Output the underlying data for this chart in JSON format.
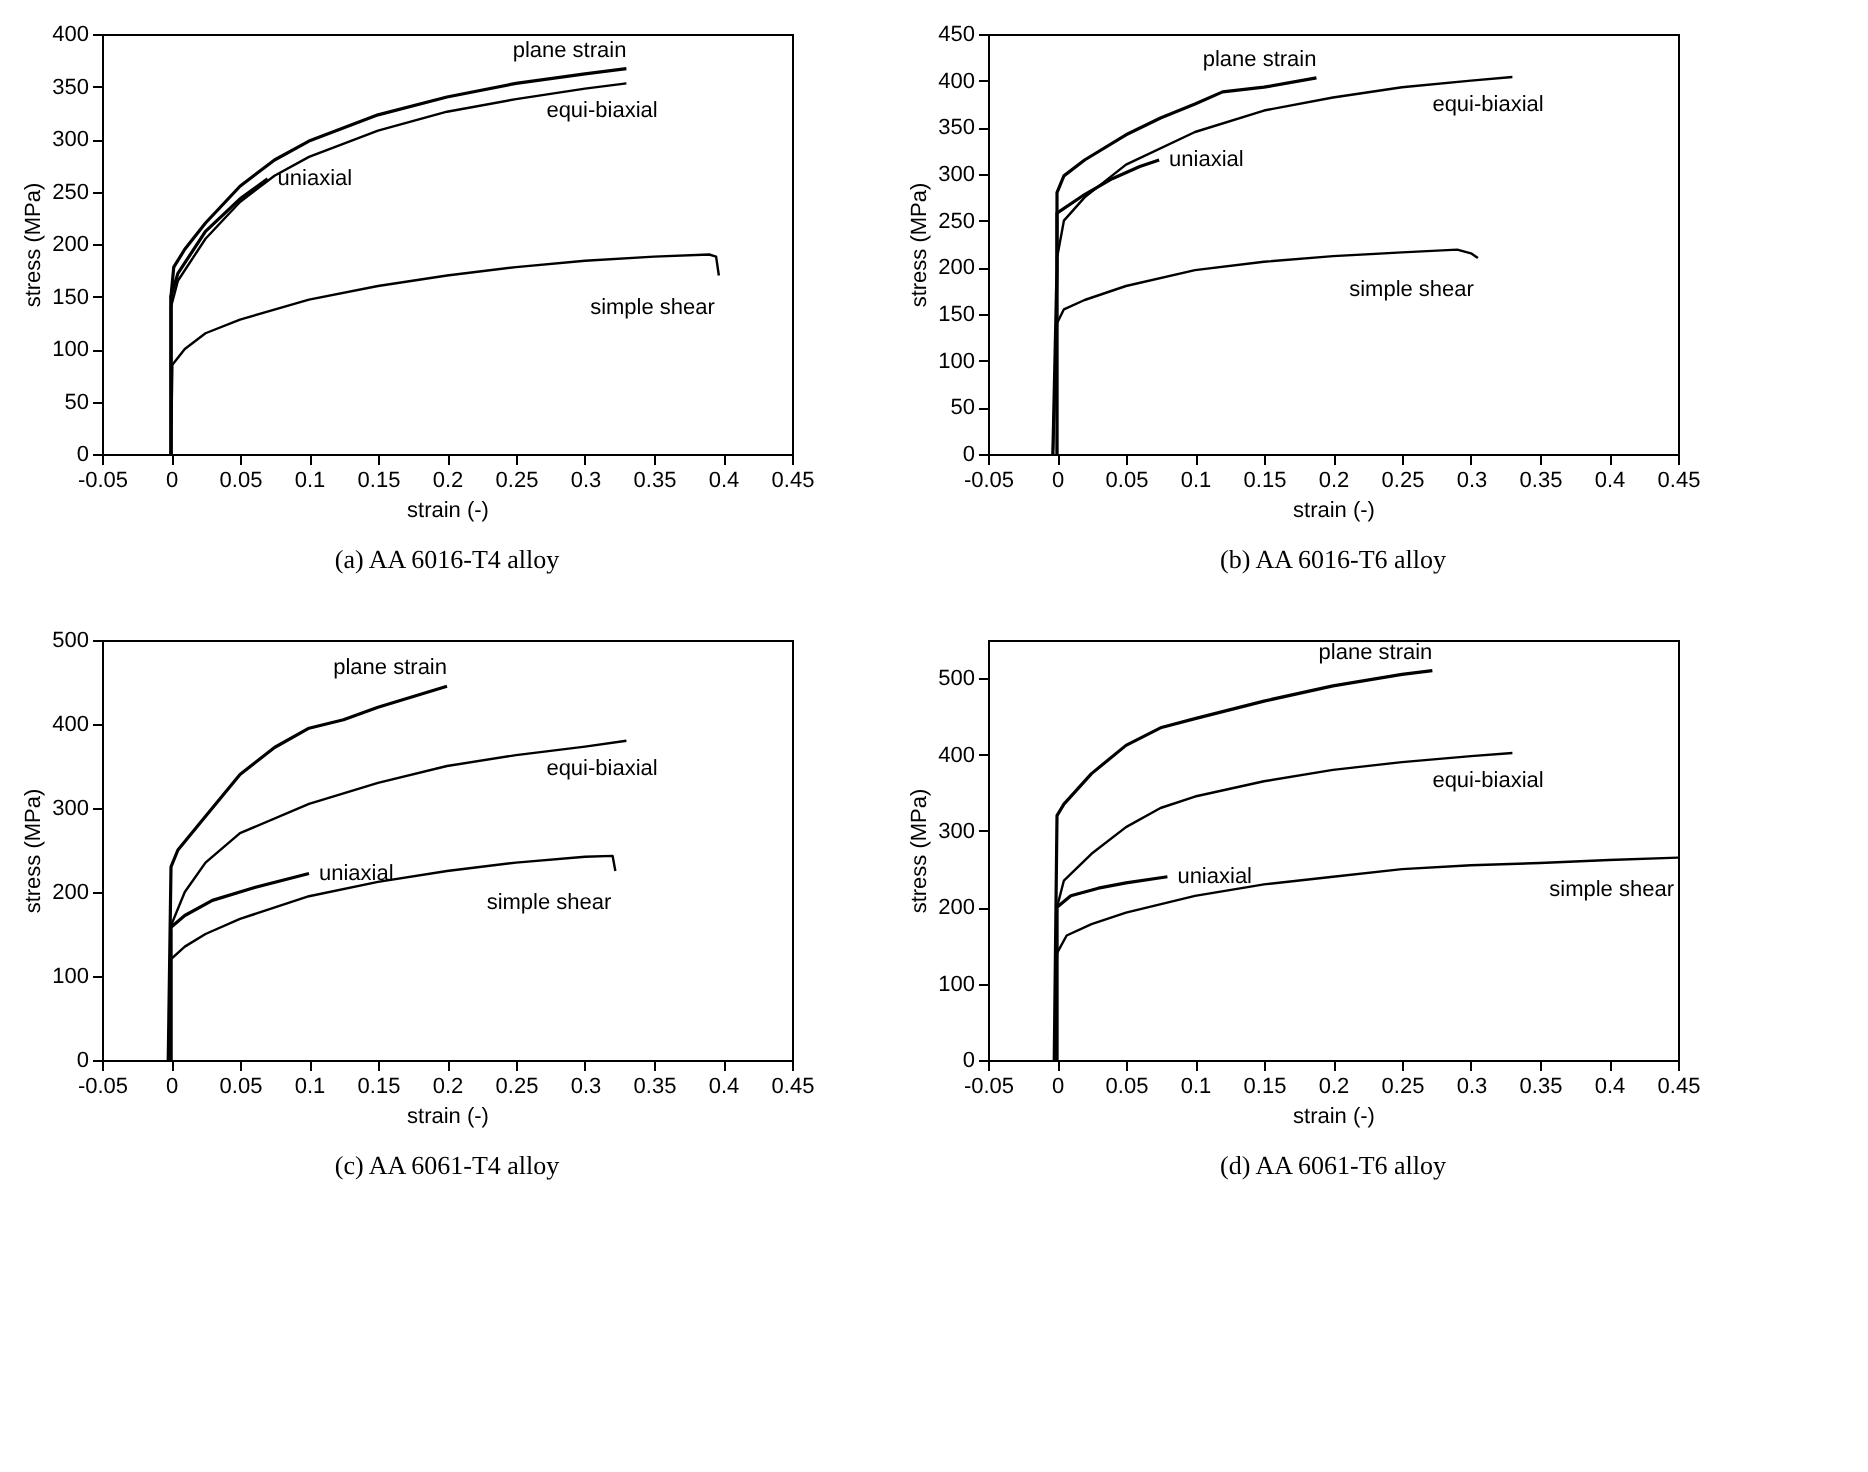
{
  "chart_data": [
    {
      "type": "line",
      "title": "(a)  AA 6016-T4 alloy",
      "xlabel": "strain (-)",
      "ylabel": "stress (MPa)",
      "xlim": [
        -0.05,
        0.45
      ],
      "xticks": [
        -0.05,
        0,
        0.05,
        0.1,
        0.15,
        0.2,
        0.25,
        0.3,
        0.35,
        0.4,
        0.45
      ],
      "ylim": [
        0,
        400
      ],
      "yticks": [
        0,
        50,
        100,
        150,
        200,
        250,
        300,
        350,
        400
      ],
      "marker": "none",
      "line_style": "solid",
      "legend": false,
      "grid": false,
      "series": [
        {
          "name": "plane strain",
          "color": "#000000",
          "x": [
            0,
            0,
            0.002,
            0.01,
            0.025,
            0.05,
            0.075,
            0.1,
            0.15,
            0.2,
            0.25,
            0.3,
            0.33
          ],
          "values": [
            0,
            150,
            178,
            195,
            220,
            255,
            280,
            298,
            323,
            340,
            353,
            362,
            367
          ]
        },
        {
          "name": "equi-biaxial",
          "color": "#000000",
          "x": [
            0,
            0,
            0.005,
            0.025,
            0.05,
            0.075,
            0.1,
            0.15,
            0.2,
            0.25,
            0.3,
            0.33
          ],
          "values": [
            0,
            140,
            165,
            205,
            240,
            265,
            283,
            308,
            326,
            338,
            348,
            353
          ]
        },
        {
          "name": "uniaxial",
          "color": "#000000",
          "x": [
            0,
            0,
            0.005,
            0.025,
            0.05,
            0.07
          ],
          "values": [
            0,
            150,
            172,
            212,
            243,
            262
          ]
        },
        {
          "name": "simple shear",
          "color": "#000000",
          "x": [
            0,
            0.001,
            0.01,
            0.025,
            0.05,
            0.1,
            0.15,
            0.2,
            0.25,
            0.3,
            0.35,
            0.39,
            0.395,
            0.397
          ],
          "values": [
            0,
            85,
            100,
            115,
            128,
            147,
            160,
            170,
            178,
            184,
            188,
            190,
            188,
            170
          ]
        }
      ]
    },
    {
      "type": "line",
      "title": "(b)  AA 6016-T6 alloy",
      "xlabel": "strain (-)",
      "ylabel": "stress (MPa)",
      "xlim": [
        -0.05,
        0.45
      ],
      "xticks": [
        -0.05,
        0,
        0.05,
        0.1,
        0.15,
        0.2,
        0.25,
        0.3,
        0.35,
        0.4,
        0.45
      ],
      "ylim": [
        0,
        450
      ],
      "yticks": [
        0,
        50,
        100,
        150,
        200,
        250,
        300,
        350,
        400,
        450
      ],
      "marker": "none",
      "line_style": "solid",
      "legend": false,
      "grid": false,
      "series": [
        {
          "name": "plane strain",
          "color": "#000000",
          "x": [
            -0.003,
            0,
            0,
            0.005,
            0.02,
            0.05,
            0.075,
            0.1,
            0.12,
            0.15,
            0.188
          ],
          "values": [
            0,
            200,
            280,
            298,
            315,
            342,
            360,
            375,
            388,
            393,
            403
          ]
        },
        {
          "name": "equi-biaxial",
          "color": "#000000",
          "x": [
            0,
            0,
            0.005,
            0.02,
            0.05,
            0.1,
            0.15,
            0.2,
            0.25,
            0.3,
            0.33
          ],
          "values": [
            0,
            210,
            250,
            275,
            310,
            345,
            368,
            382,
            393,
            400,
            404
          ]
        },
        {
          "name": "uniaxial",
          "color": "#000000",
          "x": [
            0,
            0,
            0.02,
            0.04,
            0.06,
            0.074
          ],
          "values": [
            0,
            258,
            278,
            295,
            308,
            315
          ]
        },
        {
          "name": "simple shear",
          "color": "#000000",
          "x": [
            -0.003,
            0,
            0.005,
            0.02,
            0.05,
            0.1,
            0.15,
            0.2,
            0.25,
            0.29,
            0.3,
            0.305
          ],
          "values": [
            0,
            140,
            155,
            165,
            180,
            197,
            206,
            212,
            216,
            219,
            215,
            210
          ]
        }
      ]
    },
    {
      "type": "line",
      "title": "(c)  AA 6061-T4 alloy",
      "xlabel": "strain (-)",
      "ylabel": "stress (MPa)",
      "xlim": [
        -0.05,
        0.45
      ],
      "xticks": [
        -0.05,
        0,
        0.05,
        0.1,
        0.15,
        0.2,
        0.25,
        0.3,
        0.35,
        0.4,
        0.45
      ],
      "ylim": [
        0,
        500
      ],
      "yticks": [
        0,
        100,
        200,
        300,
        400,
        500
      ],
      "marker": "none",
      "line_style": "solid",
      "legend": false,
      "grid": false,
      "series": [
        {
          "name": "plane strain",
          "color": "#000000",
          "x": [
            -0.002,
            0,
            0.005,
            0.02,
            0.05,
            0.075,
            0.1,
            0.125,
            0.15,
            0.2
          ],
          "values": [
            0,
            230,
            250,
            280,
            340,
            372,
            395,
            405,
            420,
            445
          ]
        },
        {
          "name": "equi-biaxial",
          "color": "#000000",
          "x": [
            0,
            0,
            0.01,
            0.025,
            0.05,
            0.1,
            0.15,
            0.2,
            0.25,
            0.3,
            0.33
          ],
          "values": [
            0,
            160,
            200,
            235,
            270,
            305,
            330,
            350,
            363,
            373,
            380
          ]
        },
        {
          "name": "uniaxial",
          "color": "#000000",
          "x": [
            0,
            0,
            0.01,
            0.03,
            0.06,
            0.1
          ],
          "values": [
            0,
            158,
            172,
            190,
            205,
            222
          ]
        },
        {
          "name": "simple shear",
          "color": "#000000",
          "x": [
            0,
            0,
            0.01,
            0.025,
            0.05,
            0.1,
            0.15,
            0.2,
            0.25,
            0.3,
            0.32,
            0.322
          ],
          "values": [
            0,
            120,
            135,
            150,
            168,
            195,
            212,
            225,
            235,
            242,
            243,
            225
          ]
        }
      ]
    },
    {
      "type": "line",
      "title": "(d)  AA 6061-T6 alloy",
      "xlabel": "strain (-)",
      "ylabel": "stress (MPa)",
      "xlim": [
        -0.05,
        0.45
      ],
      "xticks": [
        -0.05,
        0,
        0.05,
        0.1,
        0.15,
        0.2,
        0.25,
        0.3,
        0.35,
        0.4,
        0.45
      ],
      "ylim": [
        0,
        550
      ],
      "yticks": [
        0,
        100,
        200,
        300,
        400,
        500
      ],
      "marker": "none",
      "line_style": "solid",
      "legend": false,
      "grid": false,
      "series": [
        {
          "name": "plane strain",
          "color": "#000000",
          "x": [
            -0.002,
            0,
            0.005,
            0.025,
            0.05,
            0.075,
            0.1,
            0.15,
            0.2,
            0.25,
            0.272
          ],
          "values": [
            0,
            320,
            335,
            375,
            412,
            435,
            447,
            470,
            490,
            505,
            510
          ]
        },
        {
          "name": "equi-biaxial",
          "color": "#000000",
          "x": [
            0,
            0,
            0.005,
            0.025,
            0.05,
            0.075,
            0.1,
            0.15,
            0.2,
            0.25,
            0.3,
            0.33
          ],
          "values": [
            0,
            200,
            235,
            270,
            305,
            330,
            345,
            365,
            380,
            390,
            398,
            402
          ]
        },
        {
          "name": "uniaxial",
          "color": "#000000",
          "x": [
            0,
            0,
            0.01,
            0.03,
            0.05,
            0.08
          ],
          "values": [
            0,
            200,
            215,
            225,
            232,
            240
          ]
        },
        {
          "name": "simple shear",
          "color": "#000000",
          "x": [
            -0.002,
            0,
            0.007,
            0.025,
            0.05,
            0.1,
            0.15,
            0.2,
            0.25,
            0.3,
            0.35,
            0.4,
            0.45
          ],
          "values": [
            0,
            140,
            163,
            178,
            193,
            215,
            230,
            240,
            250,
            255,
            258,
            262,
            265
          ]
        }
      ]
    }
  ]
}
